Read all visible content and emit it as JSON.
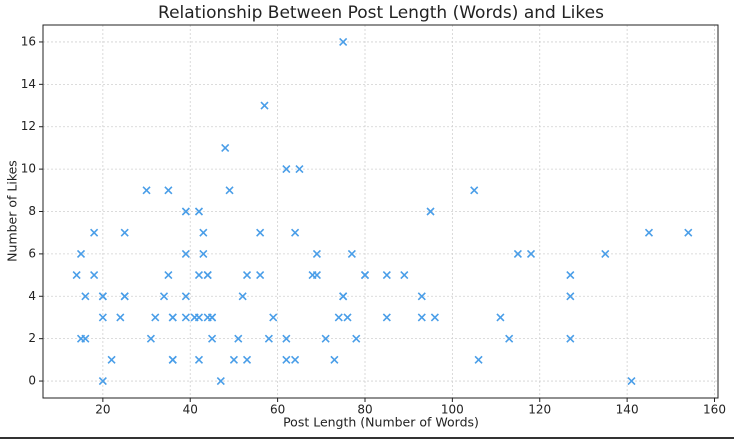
{
  "chart_data": {
    "type": "scatter",
    "title": "Relationship Between Post Length (Words) and Likes",
    "x_label": "Post Length (Number of Words)",
    "y_label": "Number of Likes",
    "color": "#4a9ee8",
    "marker": "x",
    "grid": true,
    "xlim": [
      6.3,
      160.8
    ],
    "ylim": [
      -0.8,
      16.8
    ],
    "xticks": [
      20,
      40,
      60,
      80,
      100,
      120,
      140,
      160
    ],
    "yticks": [
      0,
      2,
      4,
      6,
      8,
      10,
      12,
      14,
      16
    ],
    "x": [
      14,
      15,
      16,
      15,
      16,
      18,
      18,
      20,
      20,
      20,
      20,
      22,
      24,
      25,
      25,
      25,
      30,
      31,
      32,
      34,
      35,
      35,
      36,
      36,
      36,
      36,
      39,
      39,
      39,
      39,
      41,
      42,
      42,
      42,
      42,
      43,
      43,
      44,
      44,
      44,
      45,
      45,
      45,
      47,
      48,
      49,
      50,
      51,
      52,
      53,
      53,
      56,
      56,
      57,
      58,
      59,
      62,
      62,
      62,
      64,
      64,
      65,
      68,
      69,
      69,
      71,
      73,
      74,
      75,
      75,
      75,
      76,
      77,
      78,
      80,
      80,
      85,
      85,
      89,
      93,
      93,
      95,
      96,
      105,
      106,
      111,
      113,
      115,
      118,
      127,
      127,
      127,
      135,
      141,
      145,
      154
    ],
    "y": [
      5,
      2,
      2,
      6,
      4,
      7,
      5,
      4,
      4,
      3,
      0,
      1,
      3,
      4,
      4,
      7,
      9,
      2,
      3,
      4,
      9,
      5,
      3,
      3,
      1,
      1,
      8,
      6,
      4,
      3,
      3,
      3,
      8,
      5,
      1,
      7,
      6,
      5,
      5,
      3,
      3,
      3,
      2,
      0,
      11,
      9,
      1,
      2,
      4,
      5,
      1,
      7,
      5,
      13,
      2,
      3,
      10,
      2,
      1,
      7,
      1,
      10,
      5,
      5,
      6,
      2,
      1,
      3,
      16,
      4,
      4,
      3,
      6,
      2,
      5,
      5,
      5,
      3,
      5,
      4,
      3,
      8,
      3,
      9,
      1,
      3,
      2,
      6,
      6,
      5,
      4,
      2,
      6,
      0,
      7,
      7
    ]
  }
}
